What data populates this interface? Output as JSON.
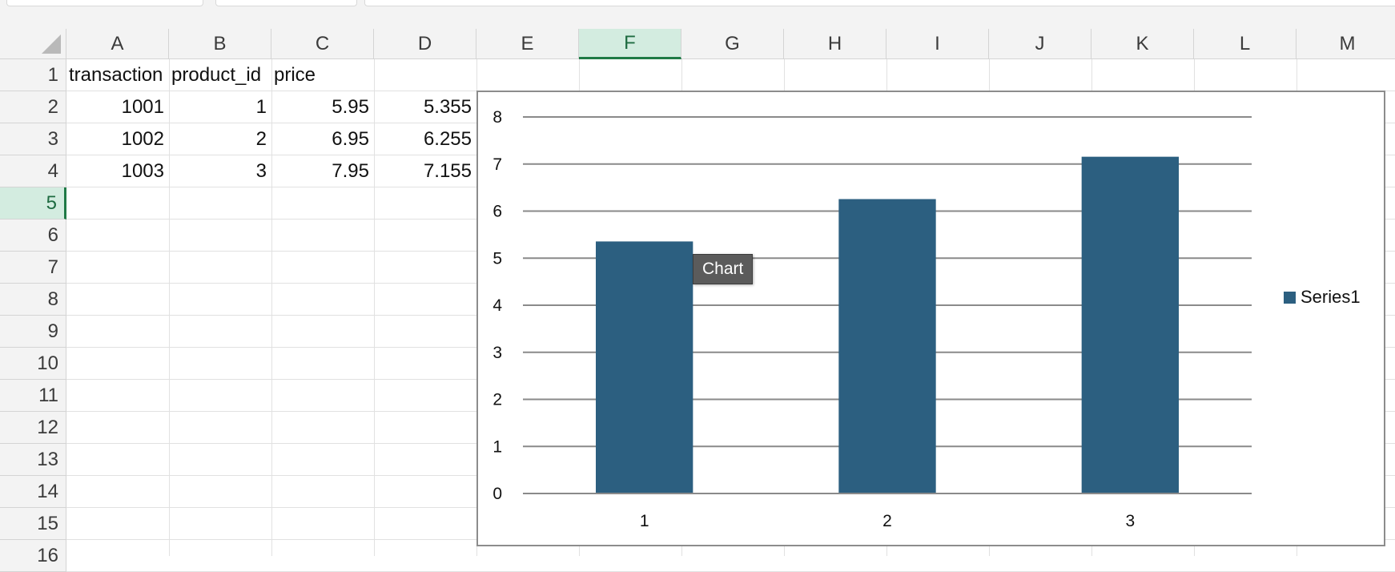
{
  "columns": [
    "A",
    "B",
    "C",
    "D",
    "E",
    "F",
    "G",
    "H",
    "I",
    "J",
    "K",
    "L",
    "M"
  ],
  "selected_column": "F",
  "rows": [
    "1",
    "2",
    "3",
    "4",
    "5",
    "6",
    "7",
    "8",
    "9",
    "10",
    "11",
    "12",
    "13",
    "14",
    "15",
    "16"
  ],
  "selected_row": "5",
  "cells": {
    "header": [
      "transaction",
      "product_id",
      "price"
    ],
    "data": [
      [
        "1001",
        "1",
        "5.95",
        "5.355"
      ],
      [
        "1002",
        "2",
        "6.95",
        "6.255"
      ],
      [
        "1003",
        "3",
        "7.95",
        "7.155"
      ]
    ]
  },
  "chart_data": {
    "type": "bar",
    "categories": [
      "1",
      "2",
      "3"
    ],
    "series": [
      {
        "name": "Series1",
        "values": [
          5.355,
          6.255,
          7.155
        ]
      }
    ],
    "title": "",
    "xlabel": "",
    "ylabel": "",
    "ylim": [
      0,
      8
    ],
    "yticks": [
      "0",
      "1",
      "2",
      "3",
      "4",
      "5",
      "6",
      "7",
      "8"
    ],
    "grid": true,
    "legend": "right",
    "series_color": "#2c5f80"
  },
  "chart_tooltip": "Chart"
}
